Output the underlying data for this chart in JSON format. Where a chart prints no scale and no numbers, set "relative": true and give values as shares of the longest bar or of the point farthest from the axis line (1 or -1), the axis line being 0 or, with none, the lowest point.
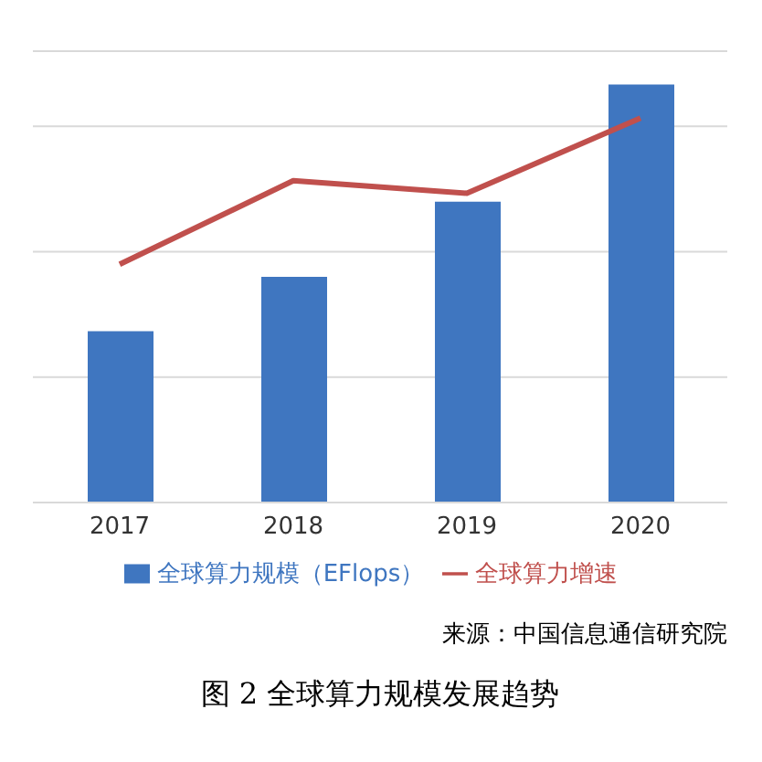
{
  "chart_data": {
    "type": "bar",
    "title": "图 2 全球算力规模发展趋势",
    "annotations": [
      "来源：中国信息通信研究院"
    ],
    "categories": [
      "2017",
      "2018",
      "2019",
      "2020"
    ],
    "relative": true,
    "grid": "y",
    "legend": "bottom",
    "series": [
      {
        "name": "全球算力规模（EFlops）",
        "color": "#3f76c0",
        "values": [
          0.41,
          0.54,
          0.72,
          1
        ]
      },
      {
        "name": "全球算力增速",
        "type": "line",
        "color": "#c0504d",
        "values": [
          0.57,
          0.77,
          0.74,
          0.92
        ],
        "marker": "none"
      }
    ]
  }
}
